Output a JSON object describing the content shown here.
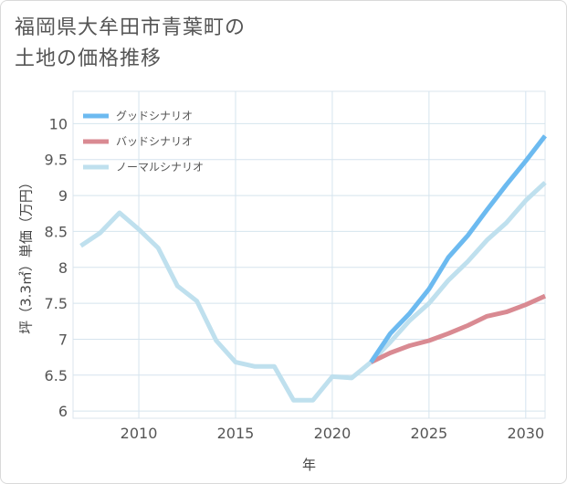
{
  "title_line1": "福岡県大牟田市青葉町の",
  "title_line2": "土地の価格推移",
  "chart_data": {
    "type": "line",
    "xlabel": "年",
    "ylabel": "坪（3.3㎡）単価（万円）",
    "xlim": [
      2006.6,
      2031
    ],
    "ylim": [
      5.9,
      10.45
    ],
    "x_ticks": [
      2010,
      2015,
      2020,
      2025,
      2030
    ],
    "y_ticks": [
      6,
      6.5,
      7,
      7.5,
      8,
      8.5,
      9,
      9.5,
      10
    ],
    "grid": true,
    "legend_position": "top-left",
    "series": [
      {
        "name": "グッドシナリオ",
        "color": "#6cbaf0",
        "x": [
          2022,
          2023,
          2024,
          2025,
          2026,
          2027,
          2028,
          2029,
          2030,
          2031
        ],
        "values": [
          6.68,
          7.08,
          7.36,
          7.7,
          8.14,
          8.44,
          8.8,
          9.15,
          9.48,
          9.83
        ]
      },
      {
        "name": "バッドシナリオ",
        "color": "#d98a92",
        "x": [
          2022,
          2023,
          2024,
          2025,
          2026,
          2027,
          2028,
          2029,
          2030,
          2031
        ],
        "values": [
          6.68,
          6.81,
          6.91,
          6.98,
          7.08,
          7.19,
          7.32,
          7.38,
          7.48,
          7.6
        ]
      },
      {
        "name": "ノーマルシナリオ",
        "color": "#bfe0ee",
        "x": [
          2007,
          2008,
          2009,
          2010,
          2011,
          2012,
          2013,
          2014,
          2015,
          2016,
          2017,
          2018,
          2019,
          2020,
          2021,
          2022,
          2023,
          2024,
          2025,
          2026,
          2027,
          2028,
          2029,
          2030,
          2031
        ],
        "values": [
          8.3,
          8.48,
          8.76,
          8.53,
          8.27,
          7.74,
          7.53,
          6.98,
          6.68,
          6.62,
          6.62,
          6.15,
          6.15,
          6.48,
          6.46,
          6.68,
          6.96,
          7.26,
          7.5,
          7.82,
          8.08,
          8.38,
          8.62,
          8.93,
          9.18
        ]
      }
    ]
  }
}
